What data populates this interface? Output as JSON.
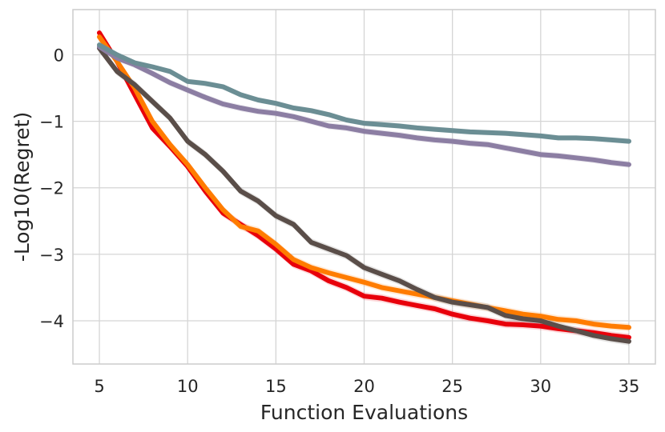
{
  "chart_data": {
    "type": "line",
    "title": "",
    "xlabel": "Function Evaluations",
    "ylabel": "-Log10(Regret)",
    "xlim": [
      3.5,
      36.5
    ],
    "ylim": [
      -4.65,
      0.68
    ],
    "grid": true,
    "xticks": [
      5,
      10,
      15,
      20,
      25,
      30,
      35
    ],
    "xtick_labels": [
      "5",
      "10",
      "15",
      "20",
      "25",
      "30",
      "35"
    ],
    "yticks": [
      0,
      -1,
      -2,
      -3,
      -4
    ],
    "ytick_labels": [
      "0",
      "−1",
      "−2",
      "−3",
      "−4"
    ],
    "x": [
      5,
      6,
      7,
      8,
      9,
      10,
      11,
      12,
      13,
      14,
      15,
      16,
      17,
      18,
      19,
      20,
      21,
      22,
      23,
      24,
      25,
      26,
      27,
      28,
      29,
      30,
      31,
      32,
      33,
      34,
      35
    ],
    "series": [
      {
        "name": "red",
        "color": "#e8000b",
        "values": [
          0.33,
          -0.1,
          -0.6,
          -1.1,
          -1.38,
          -1.68,
          -2.05,
          -2.38,
          -2.55,
          -2.72,
          -2.92,
          -3.15,
          -3.25,
          -3.4,
          -3.5,
          -3.63,
          -3.66,
          -3.72,
          -3.77,
          -3.82,
          -3.9,
          -3.96,
          -4.0,
          -4.05,
          -4.06,
          -4.08,
          -4.12,
          -4.15,
          -4.18,
          -4.22,
          -4.25
        ],
        "band": 0.06
      },
      {
        "name": "orange",
        "color": "#ff7c00",
        "values": [
          0.27,
          -0.1,
          -0.5,
          -1.0,
          -1.35,
          -1.65,
          -2.0,
          -2.33,
          -2.58,
          -2.65,
          -2.85,
          -3.08,
          -3.2,
          -3.28,
          -3.35,
          -3.42,
          -3.5,
          -3.55,
          -3.6,
          -3.65,
          -3.7,
          -3.75,
          -3.8,
          -3.85,
          -3.9,
          -3.93,
          -3.98,
          -4.0,
          -4.05,
          -4.08,
          -4.1
        ],
        "band": 0.06
      },
      {
        "name": "dark-gray",
        "color": "#5a4e49",
        "values": [
          0.1,
          -0.25,
          -0.45,
          -0.7,
          -0.95,
          -1.3,
          -1.5,
          -1.75,
          -2.05,
          -2.2,
          -2.42,
          -2.55,
          -2.82,
          -2.92,
          -3.02,
          -3.2,
          -3.3,
          -3.4,
          -3.53,
          -3.65,
          -3.72,
          -3.76,
          -3.8,
          -3.92,
          -3.97,
          -4.0,
          -4.08,
          -4.15,
          -4.22,
          -4.27,
          -4.31
        ],
        "band": 0.06
      },
      {
        "name": "purple",
        "color": "#8c7ea3",
        "values": [
          0.12,
          -0.05,
          -0.15,
          -0.28,
          -0.42,
          -0.53,
          -0.64,
          -0.74,
          -0.8,
          -0.85,
          -0.88,
          -0.93,
          -1.0,
          -1.07,
          -1.1,
          -1.15,
          -1.18,
          -1.21,
          -1.25,
          -1.28,
          -1.3,
          -1.33,
          -1.35,
          -1.4,
          -1.45,
          -1.5,
          -1.52,
          -1.55,
          -1.58,
          -1.62,
          -1.65
        ],
        "band": 0.05
      },
      {
        "name": "slate",
        "color": "#6b8e94",
        "values": [
          0.15,
          0.0,
          -0.12,
          -0.18,
          -0.25,
          -0.4,
          -0.43,
          -0.48,
          -0.6,
          -0.68,
          -0.73,
          -0.8,
          -0.84,
          -0.9,
          -0.98,
          -1.03,
          -1.05,
          -1.07,
          -1.1,
          -1.12,
          -1.14,
          -1.16,
          -1.17,
          -1.18,
          -1.2,
          -1.22,
          -1.25,
          -1.25,
          -1.26,
          -1.28,
          -1.3
        ],
        "band": 0.04
      }
    ]
  }
}
